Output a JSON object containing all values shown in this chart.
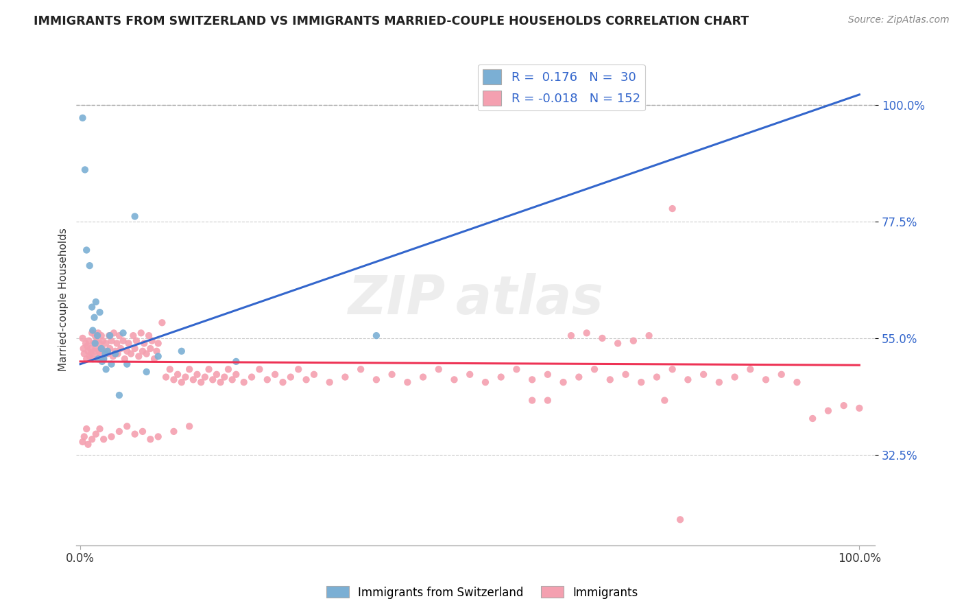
{
  "title": "IMMIGRANTS FROM SWITZERLAND VS IMMIGRANTS MARRIED-COUPLE HOUSEHOLDS CORRELATION CHART",
  "source_text": "Source: ZipAtlas.com",
  "ylabel": "Married-couple Households",
  "blue_color": "#7BAFD4",
  "pink_color": "#F4A0B0",
  "blue_line_color": "#3366CC",
  "pink_line_color": "#EE3355",
  "background_color": "#FFFFFF",
  "grid_color": "#CCCCCC",
  "blue_x": [
    0.003,
    0.006,
    0.008,
    0.012,
    0.015,
    0.016,
    0.018,
    0.019,
    0.02,
    0.022,
    0.023,
    0.025,
    0.027,
    0.028,
    0.03,
    0.032,
    0.033,
    0.035,
    0.038,
    0.04,
    0.045,
    0.05,
    0.055,
    0.06,
    0.07,
    0.085,
    0.1,
    0.13,
    0.2,
    0.38
  ],
  "blue_y": [
    0.975,
    0.875,
    0.72,
    0.69,
    0.61,
    0.565,
    0.59,
    0.54,
    0.62,
    0.555,
    0.51,
    0.6,
    0.53,
    0.505,
    0.51,
    0.52,
    0.49,
    0.525,
    0.555,
    0.5,
    0.52,
    0.44,
    0.56,
    0.5,
    0.785,
    0.485,
    0.515,
    0.525,
    0.505,
    0.555
  ],
  "pink_x": [
    0.003,
    0.004,
    0.005,
    0.007,
    0.008,
    0.009,
    0.01,
    0.011,
    0.012,
    0.013,
    0.014,
    0.015,
    0.016,
    0.017,
    0.018,
    0.019,
    0.02,
    0.021,
    0.022,
    0.023,
    0.024,
    0.025,
    0.026,
    0.027,
    0.028,
    0.029,
    0.03,
    0.032,
    0.033,
    0.035,
    0.037,
    0.038,
    0.04,
    0.042,
    0.043,
    0.045,
    0.047,
    0.048,
    0.05,
    0.052,
    0.055,
    0.057,
    0.06,
    0.062,
    0.065,
    0.068,
    0.07,
    0.072,
    0.075,
    0.078,
    0.08,
    0.082,
    0.085,
    0.088,
    0.09,
    0.092,
    0.095,
    0.098,
    0.1,
    0.105,
    0.11,
    0.115,
    0.12,
    0.125,
    0.13,
    0.135,
    0.14,
    0.145,
    0.15,
    0.155,
    0.16,
    0.165,
    0.17,
    0.175,
    0.18,
    0.185,
    0.19,
    0.195,
    0.2,
    0.21,
    0.22,
    0.23,
    0.24,
    0.25,
    0.26,
    0.27,
    0.28,
    0.29,
    0.3,
    0.32,
    0.34,
    0.36,
    0.38,
    0.4,
    0.42,
    0.44,
    0.46,
    0.48,
    0.5,
    0.52,
    0.54,
    0.56,
    0.58,
    0.6,
    0.62,
    0.64,
    0.66,
    0.68,
    0.7,
    0.72,
    0.74,
    0.76,
    0.78,
    0.8,
    0.82,
    0.84,
    0.86,
    0.88,
    0.9,
    0.92,
    0.94,
    0.96,
    0.98,
    1.0,
    0.63,
    0.65,
    0.67,
    0.69,
    0.71,
    0.73,
    0.003,
    0.005,
    0.008,
    0.01,
    0.015,
    0.02,
    0.025,
    0.03,
    0.04,
    0.05,
    0.06,
    0.07,
    0.08,
    0.09,
    0.1,
    0.12,
    0.14,
    0.58,
    0.6,
    0.75,
    0.76,
    0.77
  ],
  "pink_y": [
    0.55,
    0.53,
    0.52,
    0.54,
    0.51,
    0.535,
    0.525,
    0.545,
    0.515,
    0.53,
    0.52,
    0.56,
    0.51,
    0.54,
    0.525,
    0.555,
    0.53,
    0.545,
    0.515,
    0.56,
    0.525,
    0.54,
    0.52,
    0.555,
    0.53,
    0.545,
    0.51,
    0.525,
    0.54,
    0.52,
    0.555,
    0.53,
    0.545,
    0.515,
    0.56,
    0.525,
    0.54,
    0.52,
    0.555,
    0.53,
    0.545,
    0.51,
    0.525,
    0.54,
    0.52,
    0.555,
    0.53,
    0.545,
    0.515,
    0.56,
    0.525,
    0.54,
    0.52,
    0.555,
    0.53,
    0.545,
    0.51,
    0.525,
    0.54,
    0.58,
    0.475,
    0.49,
    0.47,
    0.48,
    0.465,
    0.475,
    0.49,
    0.47,
    0.48,
    0.465,
    0.475,
    0.49,
    0.47,
    0.48,
    0.465,
    0.475,
    0.49,
    0.47,
    0.48,
    0.465,
    0.475,
    0.49,
    0.47,
    0.48,
    0.465,
    0.475,
    0.49,
    0.47,
    0.48,
    0.465,
    0.475,
    0.49,
    0.47,
    0.48,
    0.465,
    0.475,
    0.49,
    0.47,
    0.48,
    0.465,
    0.475,
    0.49,
    0.47,
    0.48,
    0.465,
    0.475,
    0.49,
    0.47,
    0.48,
    0.465,
    0.475,
    0.49,
    0.47,
    0.48,
    0.465,
    0.475,
    0.49,
    0.47,
    0.48,
    0.465,
    0.395,
    0.41,
    0.42,
    0.415,
    0.555,
    0.56,
    0.55,
    0.54,
    0.545,
    0.555,
    0.35,
    0.36,
    0.375,
    0.345,
    0.355,
    0.365,
    0.375,
    0.355,
    0.36,
    0.37,
    0.38,
    0.365,
    0.37,
    0.355,
    0.36,
    0.37,
    0.38,
    0.43,
    0.43,
    0.43,
    0.8,
    0.2
  ],
  "blue_trend": [
    0.0,
    1.0,
    0.5,
    1.02
  ],
  "pink_trend": [
    0.0,
    1.0,
    0.505,
    0.498
  ],
  "dashed_line_y": 1.0,
  "x_min": -0.005,
  "x_max": 1.02,
  "y_min": 0.15,
  "y_max": 1.1,
  "x_ticks": [
    0.0,
    1.0
  ],
  "x_tick_labels": [
    "0.0%",
    "100.0%"
  ],
  "y_ticks": [
    0.325,
    0.55,
    0.775,
    1.0
  ],
  "y_tick_labels": [
    "32.5%",
    "55.0%",
    "77.5%",
    "100.0%"
  ],
  "r_blue": 0.176,
  "n_blue": 30,
  "r_pink": -0.018,
  "n_pink": 152
}
